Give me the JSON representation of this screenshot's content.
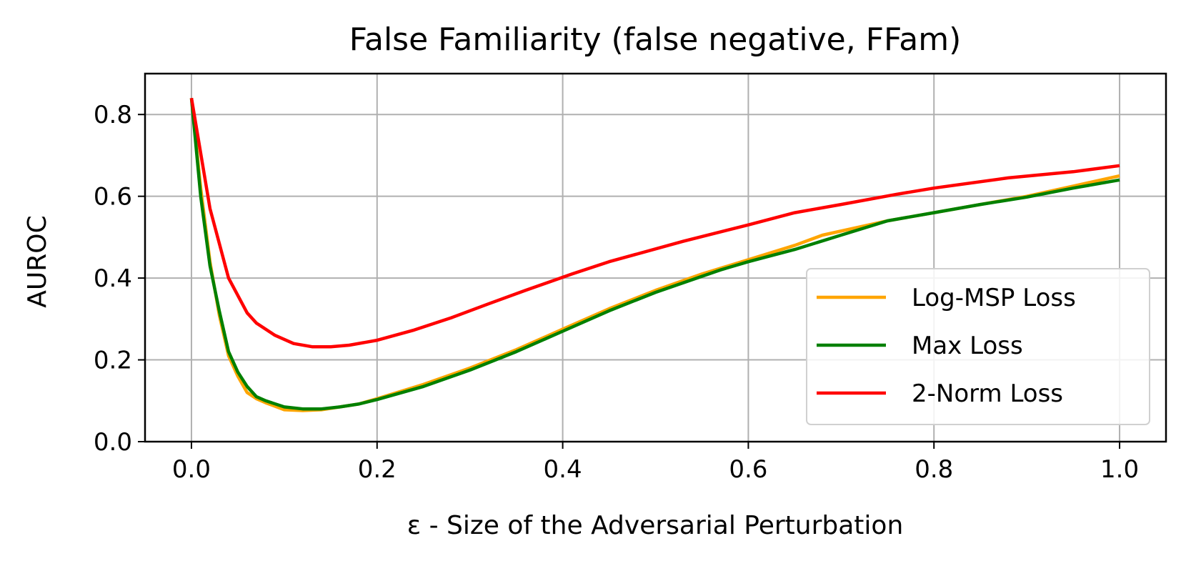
{
  "chart_data": {
    "type": "line",
    "title": "False Familiarity (false negative, FFam)",
    "xlabel": "ε - Size of the Adversarial Perturbation",
    "ylabel": "AUROC",
    "xlim": [
      -0.05,
      1.05
    ],
    "ylim": [
      0.0,
      0.9
    ],
    "xticks": [
      0.0,
      0.2,
      0.4,
      0.6,
      0.8,
      1.0
    ],
    "xtick_labels": [
      "0.0",
      "0.2",
      "0.4",
      "0.6",
      "0.8",
      "1.0"
    ],
    "yticks": [
      0.0,
      0.2,
      0.4,
      0.6,
      0.8
    ],
    "ytick_labels": [
      "0.0",
      "0.2",
      "0.4",
      "0.6",
      "0.8"
    ],
    "grid": true,
    "legend_position": "lower-right",
    "series": [
      {
        "name": "Log-MSP Loss",
        "color": "#FFA500",
        "x": [
          0.0,
          0.01,
          0.02,
          0.03,
          0.04,
          0.05,
          0.06,
          0.07,
          0.08,
          0.1,
          0.12,
          0.14,
          0.16,
          0.18,
          0.2,
          0.25,
          0.3,
          0.35,
          0.4,
          0.45,
          0.5,
          0.55,
          0.6,
          0.65,
          0.68,
          0.75,
          0.8,
          0.85,
          0.9,
          0.95,
          1.0
        ],
        "y": [
          0.84,
          0.62,
          0.44,
          0.31,
          0.21,
          0.16,
          0.12,
          0.105,
          0.095,
          0.078,
          0.076,
          0.078,
          0.085,
          0.092,
          0.105,
          0.14,
          0.18,
          0.225,
          0.275,
          0.325,
          0.37,
          0.41,
          0.445,
          0.48,
          0.505,
          0.54,
          0.56,
          0.58,
          0.6,
          0.625,
          0.65
        ]
      },
      {
        "name": "Max Loss",
        "color": "#008000",
        "x": [
          0.0,
          0.01,
          0.02,
          0.03,
          0.04,
          0.05,
          0.06,
          0.07,
          0.08,
          0.1,
          0.12,
          0.14,
          0.16,
          0.18,
          0.2,
          0.25,
          0.3,
          0.35,
          0.4,
          0.45,
          0.5,
          0.57,
          0.6,
          0.65,
          0.7,
          0.75,
          0.8,
          0.85,
          0.9,
          0.95,
          1.0
        ],
        "y": [
          0.84,
          0.6,
          0.43,
          0.32,
          0.22,
          0.17,
          0.135,
          0.11,
          0.1,
          0.085,
          0.08,
          0.08,
          0.085,
          0.092,
          0.103,
          0.135,
          0.175,
          0.22,
          0.27,
          0.32,
          0.365,
          0.42,
          0.44,
          0.47,
          0.505,
          0.54,
          0.56,
          0.58,
          0.598,
          0.62,
          0.64
        ]
      },
      {
        "name": "2-Norm Loss",
        "color": "#FF0000",
        "x": [
          0.0,
          0.02,
          0.04,
          0.06,
          0.07,
          0.09,
          0.11,
          0.13,
          0.15,
          0.17,
          0.2,
          0.24,
          0.28,
          0.32,
          0.36,
          0.41,
          0.45,
          0.53,
          0.6,
          0.65,
          0.7,
          0.76,
          0.8,
          0.88,
          0.95,
          1.0
        ],
        "y": [
          0.84,
          0.57,
          0.4,
          0.315,
          0.29,
          0.26,
          0.24,
          0.232,
          0.232,
          0.236,
          0.248,
          0.273,
          0.303,
          0.337,
          0.37,
          0.41,
          0.44,
          0.49,
          0.53,
          0.56,
          0.58,
          0.605,
          0.62,
          0.645,
          0.66,
          0.675
        ]
      }
    ]
  }
}
